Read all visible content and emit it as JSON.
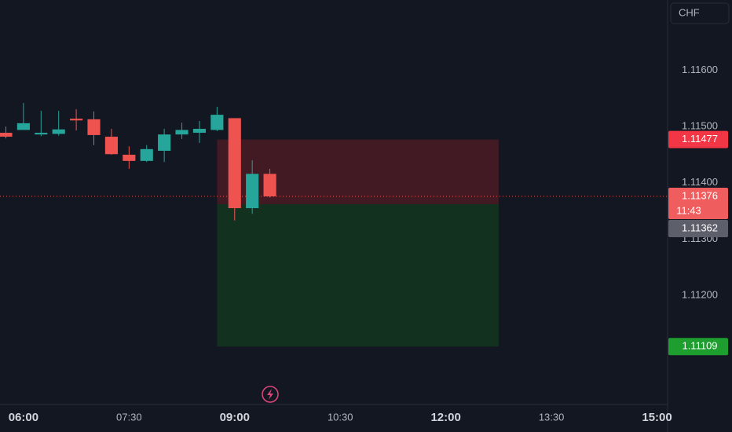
{
  "symbol_unit": "CHF",
  "chart_data": {
    "type": "candlestick",
    "x": [
      "05:45",
      "06:00",
      "06:15",
      "06:30",
      "06:45",
      "07:00",
      "07:15",
      "07:30",
      "07:45",
      "08:00",
      "08:15",
      "08:30",
      "08:45",
      "09:00",
      "09:15",
      "09:30"
    ],
    "open": [
      1.11489,
      1.11494,
      1.11486,
      1.11487,
      1.11514,
      1.11513,
      1.11482,
      1.1145,
      1.11439,
      1.11457,
      1.11486,
      1.11489,
      1.11494,
      1.11515,
      1.11355,
      1.11416
    ],
    "high": [
      1.115,
      1.11542,
      1.11528,
      1.11528,
      1.11531,
      1.11527,
      1.11496,
      1.11465,
      1.11467,
      1.11496,
      1.11507,
      1.1151,
      1.11535,
      1.11515,
      1.1144,
      1.11425
    ],
    "low": [
      1.11479,
      1.11494,
      1.11483,
      1.11484,
      1.11493,
      1.11467,
      1.1145,
      1.11425,
      1.11437,
      1.11437,
      1.11478,
      1.11471,
      1.11492,
      1.11333,
      1.11345,
      1.11374
    ],
    "close": [
      1.11482,
      1.11506,
      1.11489,
      1.11495,
      1.11511,
      1.11485,
      1.11451,
      1.11439,
      1.1146,
      1.11486,
      1.11494,
      1.11496,
      1.11521,
      1.11355,
      1.11416,
      1.11376
    ],
    "up_color": "#26a69a",
    "down_color": "#ef5350",
    "xlim": [
      "05:40",
      "15:09"
    ],
    "xticks": [
      "06:00",
      "07:30",
      "09:00",
      "10:30",
      "12:00",
      "13:30",
      "15:00"
    ],
    "ylim": [
      1.11006,
      1.11725
    ],
    "yticks": [
      {
        "value": 1.112,
        "label": "1.11200"
      },
      {
        "value": 1.113,
        "label": "1.11300"
      },
      {
        "value": 1.114,
        "label": "1.11400"
      },
      {
        "value": 1.115,
        "label": "1.11500"
      },
      {
        "value": 1.116,
        "label": "1.11600"
      }
    ],
    "last_price": {
      "value": 1.11376,
      "countdown": "11:43"
    },
    "position": {
      "stop": 1.11477,
      "entry": 1.11362,
      "target": 1.11109,
      "start": "08:45",
      "end": "12:45"
    }
  }
}
